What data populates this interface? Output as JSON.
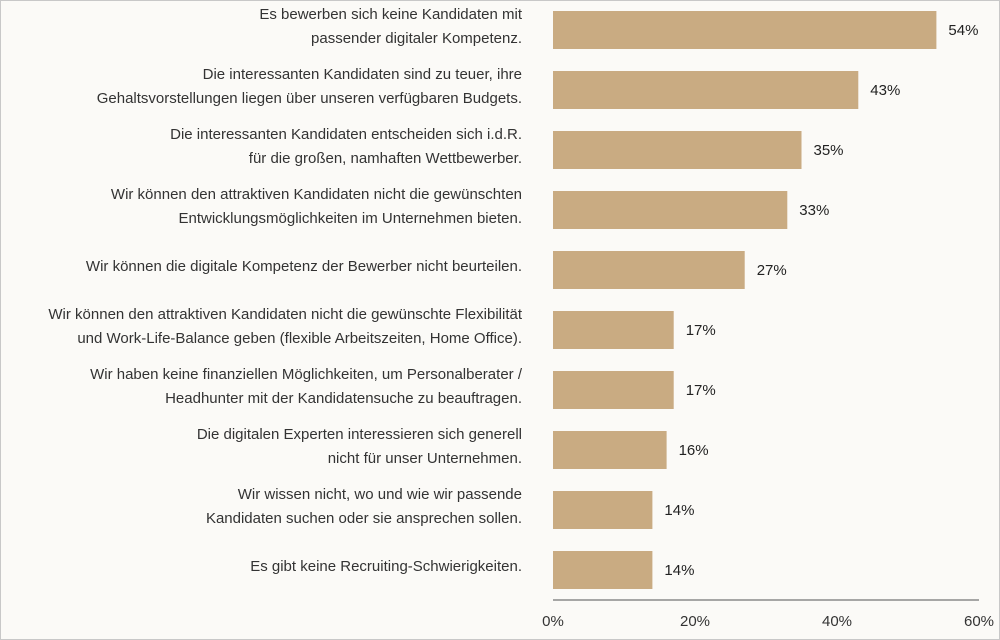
{
  "chart_data": {
    "type": "bar",
    "orientation": "horizontal",
    "title": "",
    "xlabel": "",
    "ylabel": "",
    "xlim": [
      0,
      60
    ],
    "xticks": [
      0,
      20,
      40,
      60
    ],
    "xtick_labels": [
      "0%",
      "20%",
      "40%",
      "60%"
    ],
    "grid": false,
    "legend": null,
    "bar_color": "#c9ab82",
    "categories": [
      [
        "Es bewerben sich keine Kandidaten mit",
        "passender digitaler Kompetenz."
      ],
      [
        "Die interessanten Kandidaten sind zu teuer, ihre",
        "Gehaltsvorstellungen liegen über unseren verfügbaren Budgets."
      ],
      [
        "Die interessanten Kandidaten entscheiden sich i.d.R.",
        "für die großen, namhaften Wettbewerber."
      ],
      [
        "Wir können den attraktiven Kandidaten nicht die gewünschten",
        "Entwicklungsmöglichkeiten im Unternehmen bieten."
      ],
      [
        "Wir können die digitale Kompetenz der Bewerber nicht beurteilen."
      ],
      [
        "Wir können den attraktiven Kandidaten nicht die gewünschte Flexibilität",
        "und Work-Life-Balance geben (flexible Arbeitszeiten, Home Office)."
      ],
      [
        "Wir haben keine finanziellen Möglichkeiten, um Personalberater /",
        "Headhunter mit der Kandidatensuche zu beauftragen."
      ],
      [
        "Die digitalen Experten interessieren sich generell",
        "nicht für unser Unternehmen."
      ],
      [
        "Wir wissen nicht, wo und wie wir passende",
        "Kandidaten suchen oder sie ansprechen sollen."
      ],
      [
        "Es gibt keine Recruiting-Schwierigkeiten."
      ]
    ],
    "values": [
      54,
      43,
      35,
      33,
      27,
      17,
      17,
      16,
      14,
      14
    ],
    "value_labels": [
      "54%",
      "43%",
      "35%",
      "33%",
      "27%",
      "17%",
      "17%",
      "16%",
      "14%",
      "14%"
    ]
  }
}
